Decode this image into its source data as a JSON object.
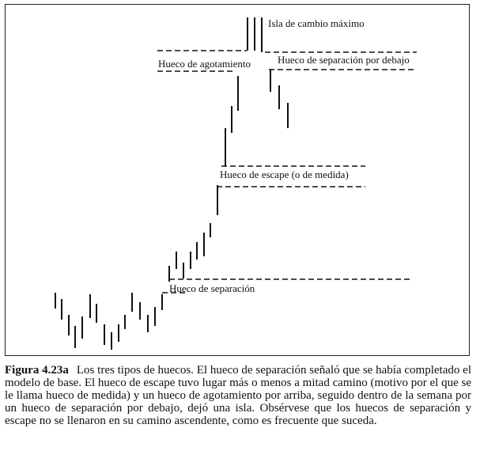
{
  "chart_data": {
    "type": "bar",
    "title": "",
    "xlabel": "",
    "ylabel": "",
    "note": "Diagrama esquemático de barras de precios (máximo-mínimo) sin ejes ni escalas",
    "bars": [
      [
        70,
        370,
        390
      ],
      [
        78,
        378,
        404
      ],
      [
        87,
        398,
        424
      ],
      [
        95,
        412,
        440
      ],
      [
        104,
        400,
        428
      ],
      [
        114,
        372,
        402
      ],
      [
        122,
        384,
        408
      ],
      [
        132,
        410,
        436
      ],
      [
        141,
        420,
        442
      ],
      [
        150,
        410,
        432
      ],
      [
        158,
        398,
        416
      ],
      [
        167,
        370,
        394
      ],
      [
        177,
        382,
        404
      ],
      [
        187,
        398,
        420
      ],
      [
        196,
        388,
        412
      ],
      [
        205,
        372,
        392
      ],
      [
        214,
        336,
        356
      ],
      [
        223,
        318,
        340
      ],
      [
        232,
        332,
        352
      ],
      [
        241,
        318,
        340
      ],
      [
        249,
        306,
        328
      ],
      [
        258,
        294,
        324
      ],
      [
        266,
        282,
        300
      ],
      [
        275,
        234,
        272
      ],
      [
        285,
        162,
        210
      ],
      [
        293,
        134,
        168
      ],
      [
        301,
        96,
        140
      ],
      [
        313,
        22,
        64
      ],
      [
        322,
        22,
        64
      ],
      [
        331,
        22,
        66
      ],
      [
        342,
        88,
        116
      ],
      [
        353,
        108,
        138
      ],
      [
        364,
        130,
        162
      ]
    ],
    "gaps": [
      {
        "y": 353,
        "x1": 214,
        "x2": 522
      },
      {
        "y": 370,
        "x1": 205,
        "x2": 235
      },
      {
        "y": 210,
        "x1": 280,
        "x2": 462
      },
      {
        "y": 236,
        "x1": 274,
        "x2": 462
      },
      {
        "y": 64,
        "x1": 199,
        "x2": 312
      },
      {
        "y": 90,
        "x1": 199,
        "x2": 298
      },
      {
        "y": 66,
        "x1": 335,
        "x2": 527
      },
      {
        "y": 88,
        "x1": 340,
        "x2": 527
      }
    ]
  },
  "labels": {
    "isla": "Isla de cambio máximo",
    "agotamiento": "Hueco de agotamiento",
    "separacion_debajo": "Hueco de separación por debajo",
    "escape": "Hueco de escape (o de medida)",
    "separacion": "Hueco de separación"
  },
  "caption": {
    "figure": "Figura 4.23a",
    "text": "Los tres tipos de huecos. El hueco de separación señaló que se había completado el modelo de base. El hueco de escape tuvo lugar más o menos a mitad camino (motivo por el que se le llama hueco de medida) y un hueco de agotamiento por arriba, seguido dentro de la semana por un hueco de separación por debajo, dejó una isla. Obsérvese que los huecos de separación y escape no se llenaron en su camino ascendente, como es frecuente que suceda."
  }
}
